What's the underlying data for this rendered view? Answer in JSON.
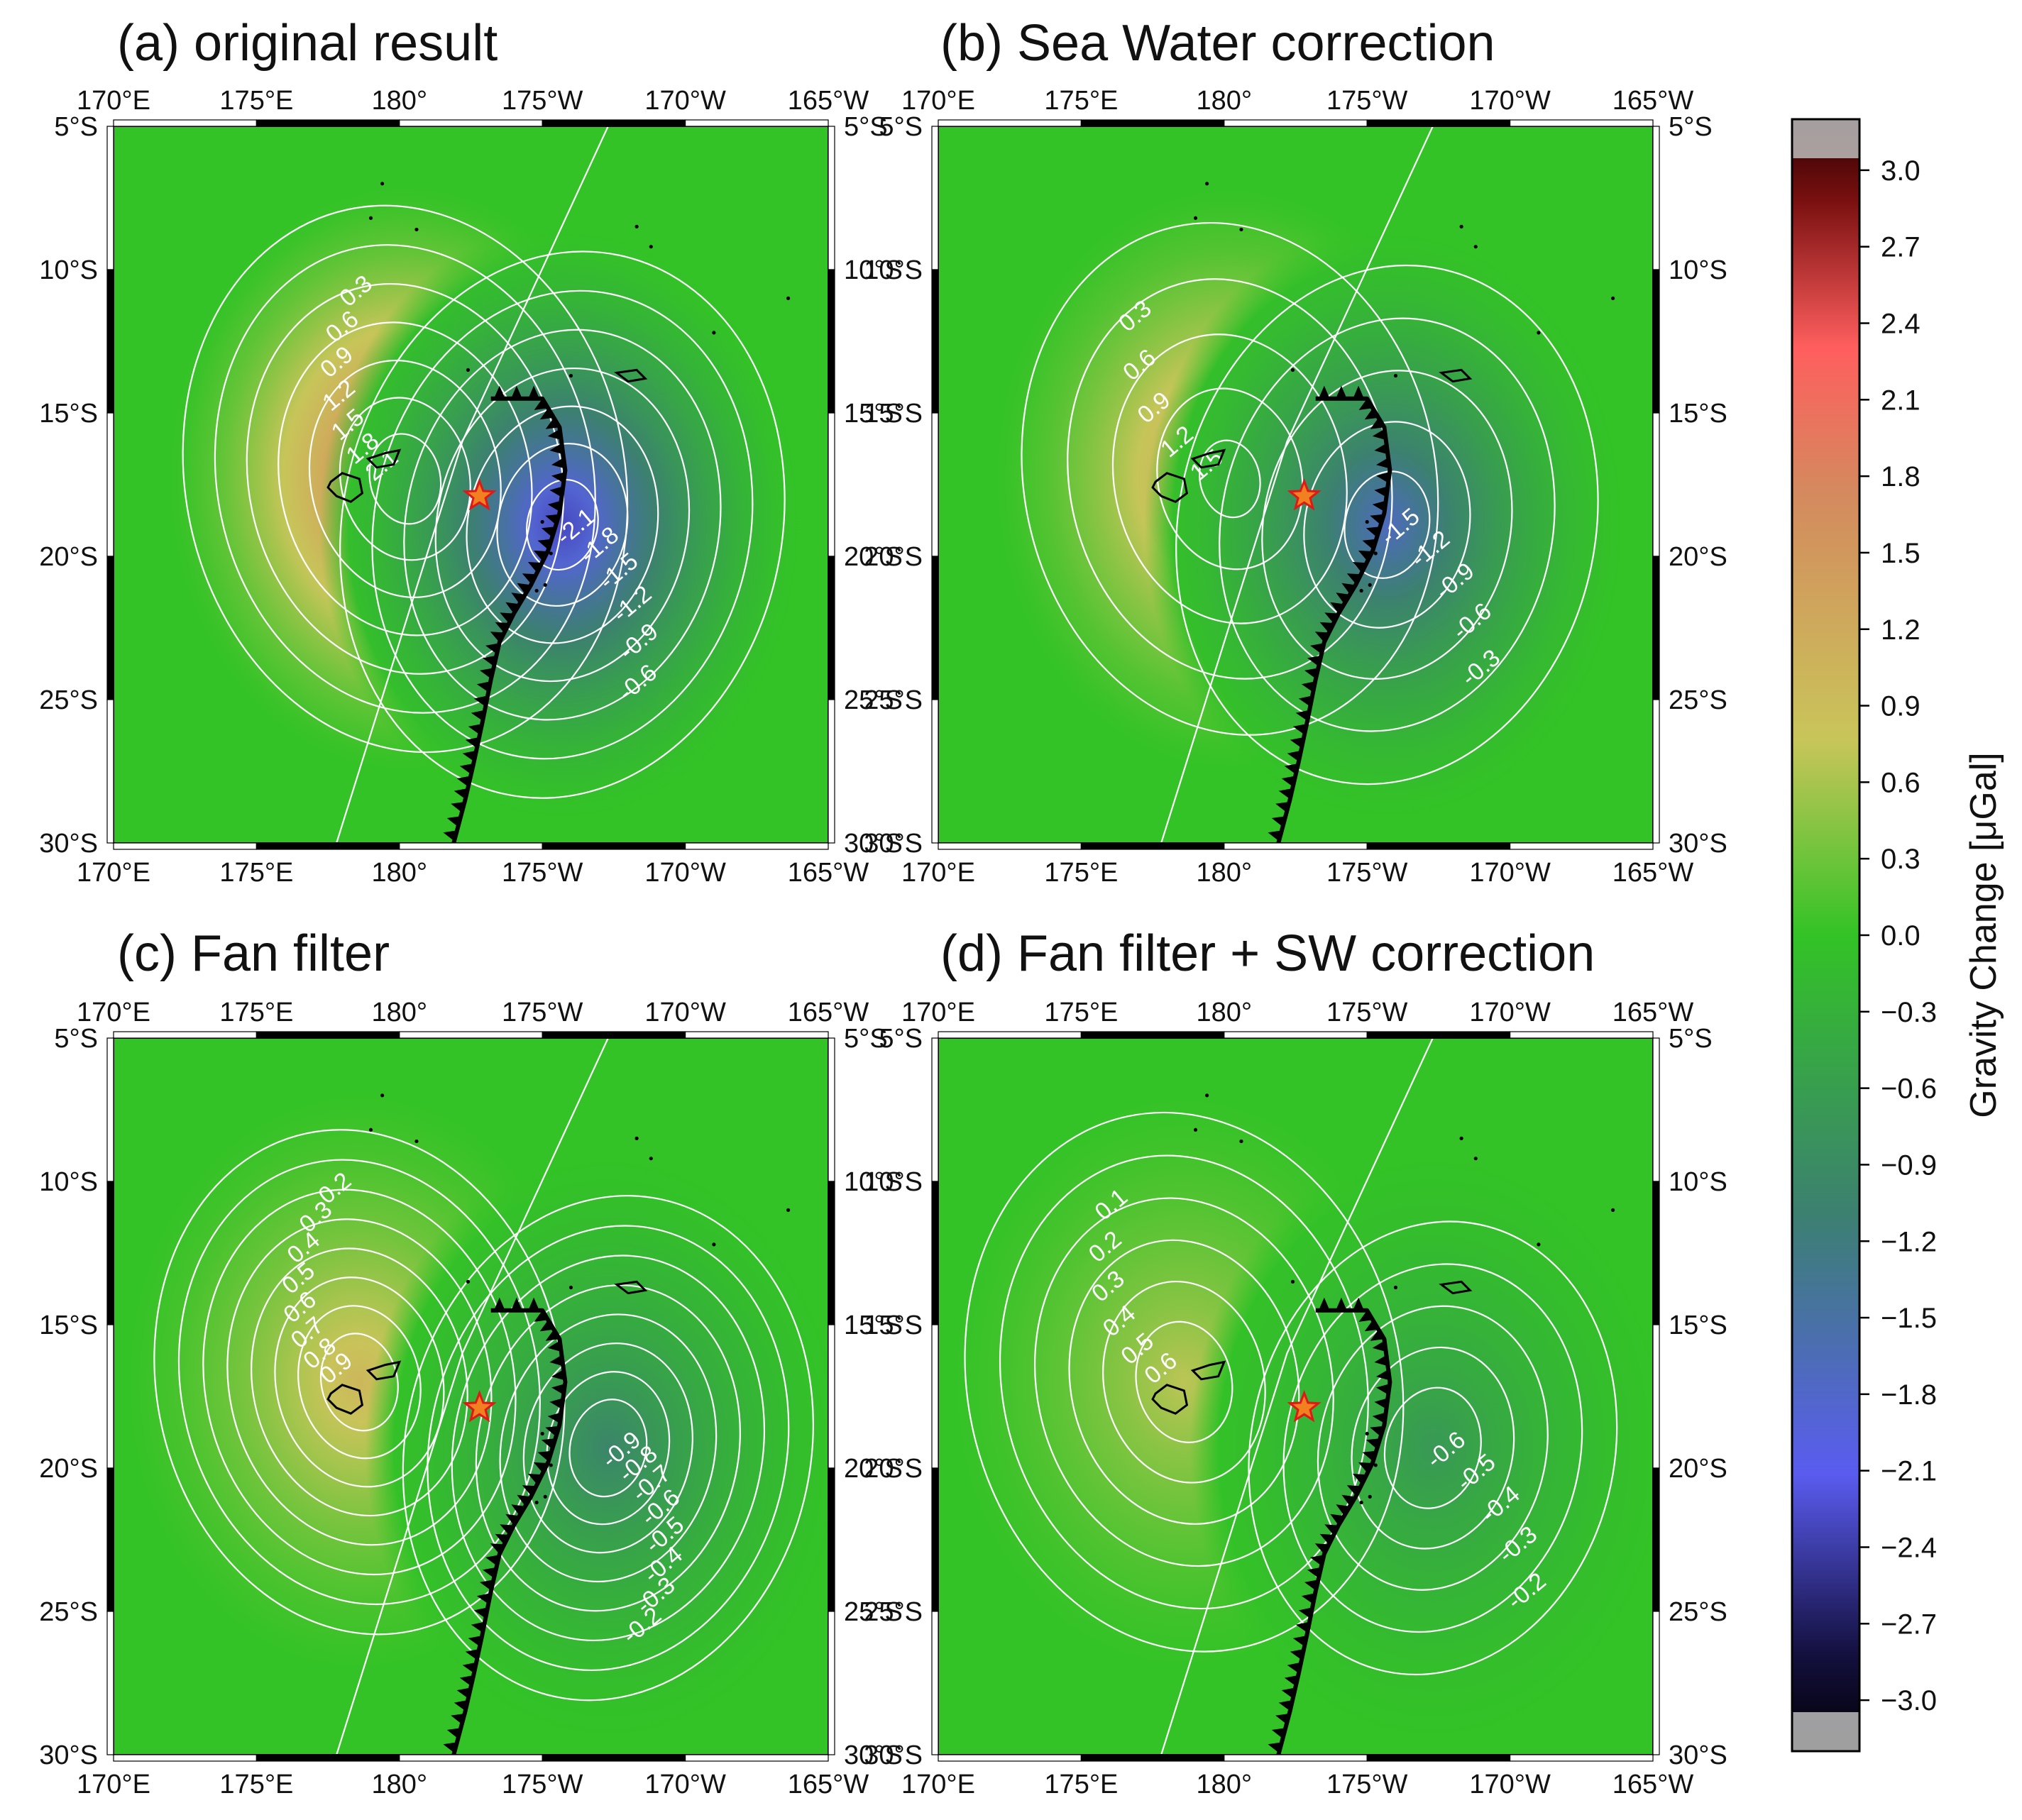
{
  "chart_data": {
    "type": "heatmap",
    "projection": "map",
    "colors": {
      "neg_max": "#000000",
      "blue": "#5a5cf0",
      "teal": "#3c8070",
      "green": "#33c326",
      "yellow": "#c9c55a",
      "orange": "#d48a5e",
      "red": "#ff5e5e",
      "pos_max": "#2a0000",
      "star": "#f08020",
      "star_edge": "#e01818",
      "trench": "#000000",
      "contour": "#ffffff"
    },
    "map": {
      "lon_range": [
        170,
        195
      ],
      "lat_range": [
        -30,
        -5
      ],
      "x_ticks": [
        "170°E",
        "175°E",
        "180°",
        "175°W",
        "170°W",
        "165°W"
      ],
      "y_ticks": [
        "5°S",
        "10°S",
        "15°S",
        "20°S",
        "25°S",
        "30°S"
      ],
      "epicenter": {
        "lon": 182.8,
        "lat": -17.9
      }
    },
    "panels": [
      {
        "id": "a",
        "title": "(a) original result",
        "pos_peak": {
          "lon": 180.2,
          "lat": -17.3,
          "value": 2.3
        },
        "neg_peak": {
          "lon": 185.7,
          "lat": -18.9,
          "value": -2.3
        },
        "contour_levels": [
          -2.1,
          -1.8,
          -1.5,
          -1.2,
          -0.9,
          -0.6,
          -0.3,
          0.3,
          0.6,
          0.9,
          1.2,
          1.5,
          1.8,
          2.1
        ],
        "labels": [
          "2.1",
          "1.8",
          "1.5",
          "1.2",
          "0.9",
          "0.6",
          "0.3",
          "-2.1",
          "-1.8",
          "-1.5",
          "-1.2",
          "-0.9",
          "-0.6"
        ]
      },
      {
        "id": "b",
        "title": "(b) Sea Water correction",
        "pos_peak": {
          "lon": 180.2,
          "lat": -17.3,
          "value": 1.6
        },
        "neg_peak": {
          "lon": 185.7,
          "lat": -18.9,
          "value": -1.7
        },
        "contour_levels": [
          -1.5,
          -1.2,
          -0.9,
          -0.6,
          -0.3,
          0.3,
          0.6,
          0.9,
          1.2,
          1.5
        ],
        "labels": [
          "1.5",
          "1.2",
          "0.9",
          "0.6",
          "0.3",
          "-1.5",
          "-1.2",
          "-0.9",
          "-0.6",
          "-0.3"
        ]
      },
      {
        "id": "c",
        "title": "(c) Fan filter",
        "pos_peak": {
          "lon": 178.6,
          "lat": -17.0,
          "value": 1.0
        },
        "neg_peak": {
          "lon": 187.3,
          "lat": -19.3,
          "value": -1.0
        },
        "contour_levels": [
          -0.9,
          -0.8,
          -0.7,
          -0.6,
          -0.5,
          -0.4,
          -0.3,
          -0.2,
          0.2,
          0.3,
          0.4,
          0.5,
          0.6,
          0.7,
          0.8,
          0.9
        ],
        "labels": [
          "0.9",
          "0.8",
          "0.7",
          "0.6",
          "0.5",
          "0.4",
          "0.3",
          "0.2",
          "-0.9",
          "-0.8",
          "-0.7",
          "-0.6",
          "-0.5",
          "-0.4",
          "-0.3",
          "-0.2"
        ]
      },
      {
        "id": "d",
        "title": "(d) Fan filter + SW correction",
        "pos_peak": {
          "lon": 178.6,
          "lat": -17.0,
          "value": 0.7
        },
        "neg_peak": {
          "lon": 187.3,
          "lat": -19.3,
          "value": -0.7
        },
        "contour_levels": [
          -0.6,
          -0.5,
          -0.4,
          -0.3,
          -0.2,
          0.1,
          0.2,
          0.3,
          0.4,
          0.5,
          0.6
        ],
        "labels": [
          "0.6",
          "0.5",
          "0.4",
          "0.3",
          "0.2",
          "0.1",
          "-0.6",
          "-0.5",
          "-0.4",
          "-0.3",
          "-0.2"
        ]
      }
    ],
    "colorbar": {
      "title": "Gravity Change [μGal]",
      "range": [
        -3.2,
        3.2
      ],
      "ticks": [
        "3.0",
        "2.7",
        "2.4",
        "2.1",
        "1.8",
        "1.5",
        "1.2",
        "0.9",
        "0.6",
        "0.3",
        "0.0",
        "−0.3",
        "−0.6",
        "−0.9",
        "−1.2",
        "−1.5",
        "−1.8",
        "−2.1",
        "−2.4",
        "−2.7",
        "−3.0"
      ],
      "tick_values": [
        3.0,
        2.7,
        2.4,
        2.1,
        1.8,
        1.5,
        1.2,
        0.9,
        0.6,
        0.3,
        0.0,
        -0.3,
        -0.6,
        -0.9,
        -1.2,
        -1.5,
        -1.8,
        -2.1,
        -2.4,
        -2.7,
        -3.0
      ]
    }
  }
}
